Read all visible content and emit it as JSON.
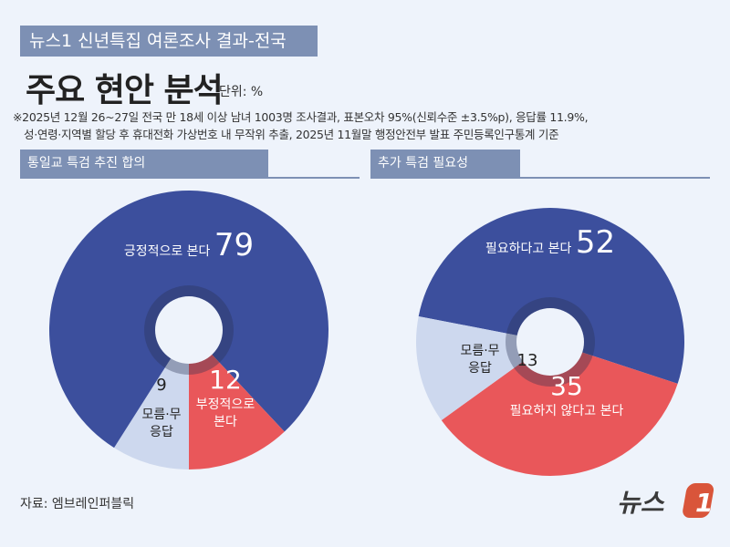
{
  "header": {
    "kicker": "뉴스1 신년특집 여론조사 결과-전국",
    "title": "주요 현안 분석",
    "unit": "단위: %",
    "note_lines": [
      "※2025년 12월 26~27일 전국 만 18세 이상 남녀 1003명 조사결과, 표본오차 95%(신뢰수준 ±3.5%p), 응답률 11.9%,",
      "성·연령·지역별 할당 후 휴대전화 가상번호 내 무작위 추출, 2025년 11월말 행정안전부 발표 주민등록인구통계 기준"
    ]
  },
  "colors": {
    "blue": "#3c4f9d",
    "red": "#e9575a",
    "light": "#cdd8ee",
    "background": "#eef3fb",
    "section": "#7d90b4",
    "logo": "#d9553a"
  },
  "chart_data": [
    {
      "type": "pie",
      "donut": true,
      "title": "통일교 특검 추진 합의",
      "slices": [
        {
          "label": "모름·무응답",
          "value": 9,
          "color": "#cdd8ee"
        },
        {
          "label": "긍정적으로 본다",
          "value": 79,
          "color": "#3c4f9d"
        },
        {
          "label": "부정적으로 본다",
          "value": 12,
          "color": "#e9575a"
        }
      ]
    },
    {
      "type": "pie",
      "donut": true,
      "title": "추가 특검 필요성",
      "slices": [
        {
          "label": "필요하다고 본다",
          "value": 52,
          "color": "#3c4f9d"
        },
        {
          "label": "필요하지 않다고 본다",
          "value": 35,
          "color": "#e9575a"
        },
        {
          "label": "모름·무응답",
          "value": 13,
          "color": "#cdd8ee"
        }
      ]
    }
  ],
  "footer": {
    "source": "자료: 엠브레인퍼블릭",
    "logo_text": "뉴스1"
  }
}
